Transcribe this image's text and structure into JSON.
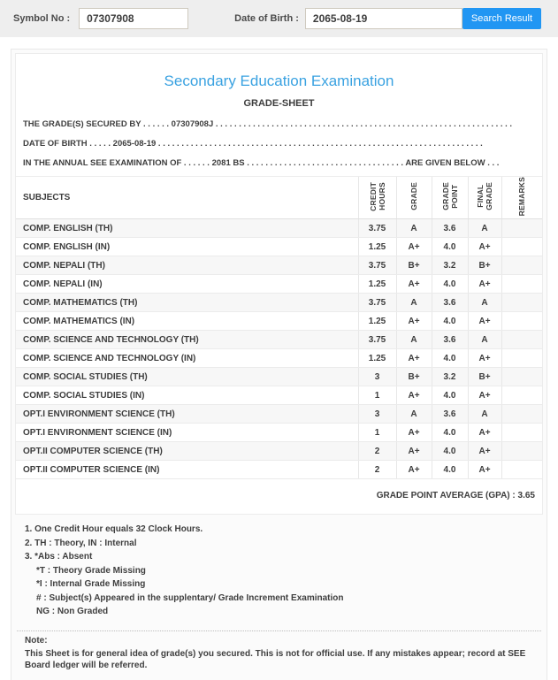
{
  "accent": {
    "title_blue": "#3aa2e1",
    "button_blue": "#2196f3",
    "stripe": "#f7f7f7"
  },
  "search_bar": {
    "symbol_label": "Symbol No :",
    "symbol_value": "07307908",
    "dob_label": "Date of Birth :",
    "dob_value": "2065-08-19",
    "button_label": "Search Result"
  },
  "header": {
    "title": "Secondary Education Examination",
    "subtitle": "GRADE-SHEET",
    "line1": "THE GRADE(S) SECURED BY . . . . . . 07307908J . . . . . . . . . . . . . . . . . . . . . . . . . . . . . . . . . . . . . . . . . . . . . . . . . . . . . . . . . . . . . . . .",
    "line2": "DATE OF BIRTH . . . . . 2065-08-19 . . . . . . . . . . . . . . . . . . . . . . . . . . . . . . . . . . . . . . . . . . . . . . . . . . . . . . . . . . . . . . . . . . . . . .",
    "line3": "IN THE ANNUAL SEE EXAMINATION OF . . . . . . 2081 BS . . . . . . . . . . . . . . . . . . . . . . . . . . . . . . . . . . ARE GIVEN BELOW . . ."
  },
  "table": {
    "headers": [
      "SUBJECTS",
      "CREDIT\nHOURS",
      "GRADE",
      "GRADE\nPOINT",
      "FINAL\nGRADE",
      "REMARKS"
    ],
    "rows": [
      {
        "subject": "COMP. ENGLISH (TH)",
        "credit_hours": "3.75",
        "grade": "A",
        "grade_point": "3.6",
        "final_grade": "A",
        "remarks": ""
      },
      {
        "subject": "COMP. ENGLISH (IN)",
        "credit_hours": "1.25",
        "grade": "A+",
        "grade_point": "4.0",
        "final_grade": "A+",
        "remarks": ""
      },
      {
        "subject": "COMP. NEPALI (TH)",
        "credit_hours": "3.75",
        "grade": "B+",
        "grade_point": "3.2",
        "final_grade": "B+",
        "remarks": ""
      },
      {
        "subject": "COMP. NEPALI (IN)",
        "credit_hours": "1.25",
        "grade": "A+",
        "grade_point": "4.0",
        "final_grade": "A+",
        "remarks": ""
      },
      {
        "subject": "COMP. MATHEMATICS (TH)",
        "credit_hours": "3.75",
        "grade": "A",
        "grade_point": "3.6",
        "final_grade": "A",
        "remarks": ""
      },
      {
        "subject": "COMP. MATHEMATICS (IN)",
        "credit_hours": "1.25",
        "grade": "A+",
        "grade_point": "4.0",
        "final_grade": "A+",
        "remarks": ""
      },
      {
        "subject": "COMP. SCIENCE AND TECHNOLOGY (TH)",
        "credit_hours": "3.75",
        "grade": "A",
        "grade_point": "3.6",
        "final_grade": "A",
        "remarks": ""
      },
      {
        "subject": "COMP. SCIENCE AND TECHNOLOGY (IN)",
        "credit_hours": "1.25",
        "grade": "A+",
        "grade_point": "4.0",
        "final_grade": "A+",
        "remarks": ""
      },
      {
        "subject": "COMP. SOCIAL STUDIES (TH)",
        "credit_hours": "3",
        "grade": "B+",
        "grade_point": "3.2",
        "final_grade": "B+",
        "remarks": ""
      },
      {
        "subject": "COMP. SOCIAL STUDIES (IN)",
        "credit_hours": "1",
        "grade": "A+",
        "grade_point": "4.0",
        "final_grade": "A+",
        "remarks": ""
      },
      {
        "subject": "OPT.I ENVIRONMENT SCIENCE (TH)",
        "credit_hours": "3",
        "grade": "A",
        "grade_point": "3.6",
        "final_grade": "A",
        "remarks": ""
      },
      {
        "subject": "OPT.I ENVIRONMENT SCIENCE (IN)",
        "credit_hours": "1",
        "grade": "A+",
        "grade_point": "4.0",
        "final_grade": "A+",
        "remarks": ""
      },
      {
        "subject": "OPT.II COMPUTER SCIENCE (TH)",
        "credit_hours": "2",
        "grade": "A+",
        "grade_point": "4.0",
        "final_grade": "A+",
        "remarks": ""
      },
      {
        "subject": "OPT.II COMPUTER SCIENCE (IN)",
        "credit_hours": "2",
        "grade": "A+",
        "grade_point": "4.0",
        "final_grade": "A+",
        "remarks": ""
      }
    ]
  },
  "gpa_text": "GRADE POINT AVERAGE (GPA) : 3.65",
  "footnotes": {
    "items": [
      "1. One Credit Hour equals 32 Clock Hours.",
      "2. TH : Theory, IN : Internal",
      "3. *Abs : Absent"
    ],
    "subitems": [
      "*T : Theory Grade Missing",
      "*I : Internal Grade Missing",
      "# : Subject(s) Appeared in the supplentary/ Grade Increment Examination",
      "NG : Non Graded"
    ]
  },
  "note": {
    "label": "Note:",
    "text": "This Sheet is for general idea of grade(s) you secured. This is not for official use. If any mistakes appear; record at SEE Board ledger will be referred."
  }
}
